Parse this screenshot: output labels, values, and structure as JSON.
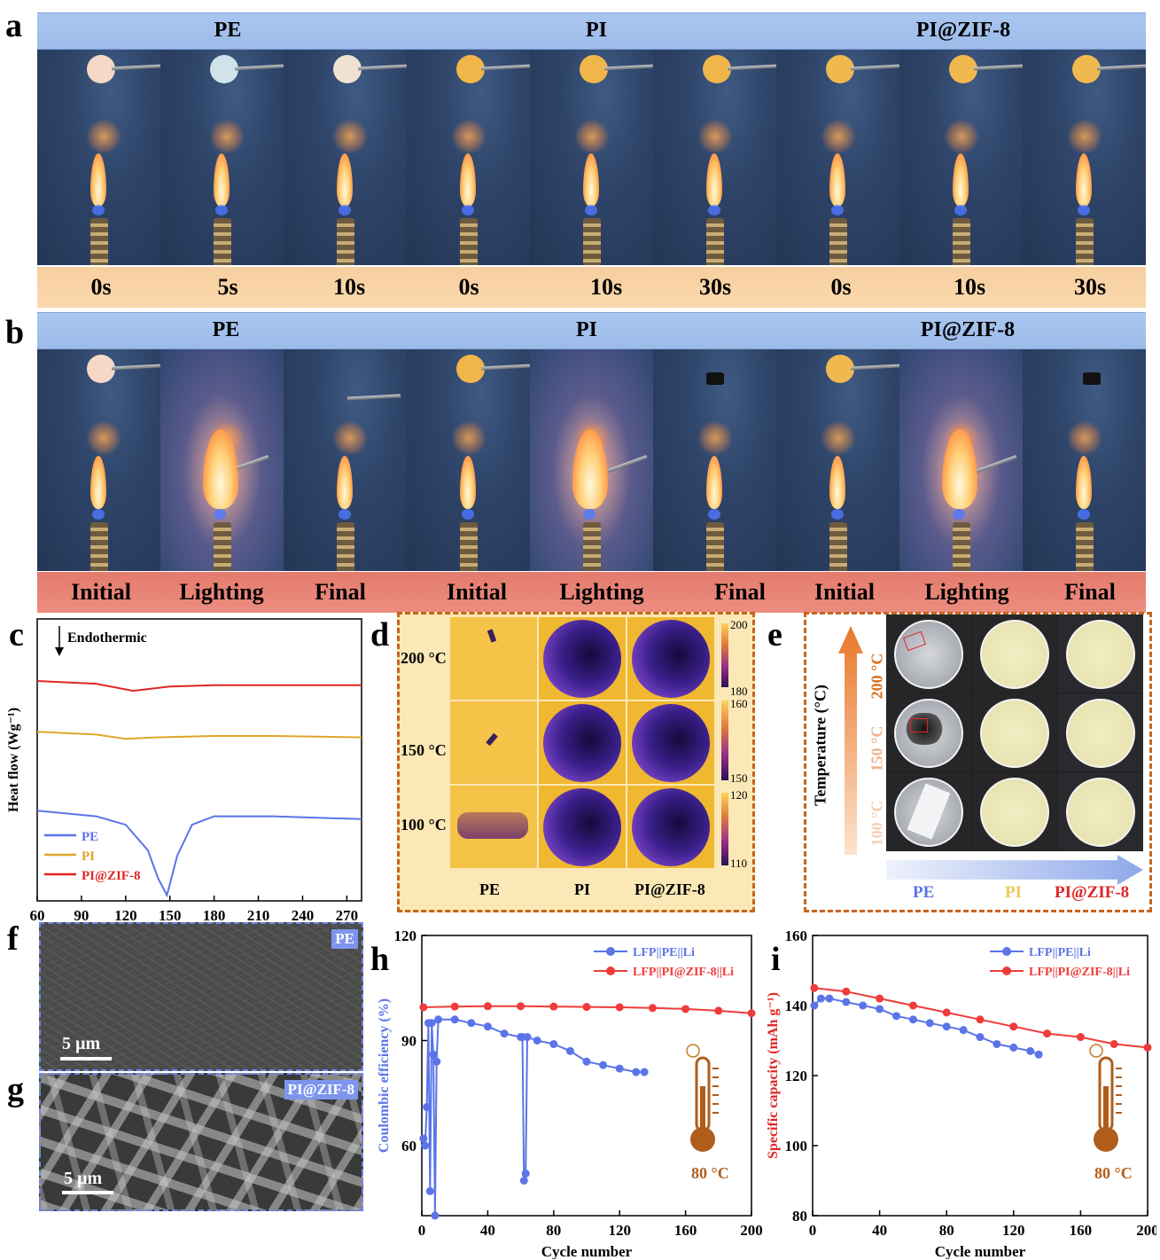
{
  "panel_letters": {
    "a": "a",
    "b": "b",
    "c": "c",
    "d": "d",
    "e": "e",
    "f": "f",
    "g": "g",
    "h": "h",
    "i": "i"
  },
  "panel_a": {
    "groups": [
      "PE",
      "PI",
      "PI@ZIF-8"
    ],
    "times": [
      "0s",
      "5s",
      "10s",
      "0s",
      "10s",
      "30s",
      "0s",
      "10s",
      "30s"
    ]
  },
  "panel_b": {
    "groups": [
      "PE",
      "PI",
      "PI@ZIF-8"
    ],
    "states": [
      "Initial",
      "Lighting",
      "Final",
      "Initial",
      "Lighting",
      "Final",
      "Initial",
      "Lighting",
      "Final"
    ]
  },
  "panel_c": {
    "annotation": "Endothermic",
    "colors": {
      "PE": "#5b74e8",
      "PI": "#e0a62a",
      "PI@ZIF-8": "#e02525"
    }
  },
  "panel_d": {
    "row_labels": [
      "200 °C",
      "150 °C",
      "100 °C"
    ],
    "col_labels": [
      "PE",
      "PI",
      "PI@ZIF-8"
    ],
    "colorbars": [
      {
        "top": "200",
        "bottom": "180"
      },
      {
        "top": "160",
        "bottom": "150"
      },
      {
        "top": "120",
        "bottom": "110"
      }
    ]
  },
  "panel_e": {
    "axis_label": "Temperature (°C)",
    "temps": [
      "200 °C",
      "150 °C",
      "100 °C"
    ],
    "materials": [
      "PE",
      "PI",
      "PI@ZIF-8"
    ],
    "material_colors": [
      "#5b74e8",
      "#f0c85a",
      "#e02525"
    ]
  },
  "panel_f": {
    "badge": "PE",
    "scale": "5 µm"
  },
  "panel_g": {
    "badge": "PI@ZIF-8",
    "scale": "5 µm"
  },
  "thermo_text": "80 °C",
  "chart_data": [
    {
      "id": "c",
      "type": "line",
      "xlabel": "Temperature (°C)",
      "ylabel": "Heat flow (Wg⁻¹)",
      "xlim": [
        60,
        280
      ],
      "xticks": [
        60,
        90,
        120,
        150,
        180,
        210,
        240,
        270
      ],
      "series": [
        {
          "name": "PE",
          "x": [
            60,
            100,
            120,
            135,
            142,
            148,
            155,
            165,
            180,
            220,
            280
          ],
          "y": [
            0.32,
            0.3,
            0.27,
            0.18,
            0.08,
            0.02,
            0.16,
            0.27,
            0.3,
            0.3,
            0.29
          ]
        },
        {
          "name": "PI",
          "x": [
            60,
            100,
            120,
            140,
            180,
            220,
            280
          ],
          "y": [
            0.6,
            0.59,
            0.575,
            0.58,
            0.585,
            0.585,
            0.58
          ]
        },
        {
          "name": "PI@ZIF-8",
          "x": [
            60,
            100,
            125,
            150,
            180,
            220,
            280
          ],
          "y": [
            0.78,
            0.77,
            0.745,
            0.76,
            0.765,
            0.765,
            0.765
          ]
        }
      ]
    },
    {
      "id": "h",
      "type": "line",
      "xlabel": "Cycle number",
      "ylabel": "Coulombic efficiency (%)",
      "xlim": [
        0,
        200
      ],
      "ylim": [
        40,
        120
      ],
      "xticks": [
        0,
        40,
        80,
        120,
        160,
        200
      ],
      "yticks": [
        60,
        90,
        120
      ],
      "series": [
        {
          "name": "LFP||PE||Li",
          "x": [
            1,
            2,
            3,
            4,
            5,
            6,
            7,
            8,
            9,
            10,
            20,
            30,
            40,
            50,
            60,
            61,
            62,
            63,
            64,
            70,
            80,
            90,
            100,
            110,
            120,
            130,
            135
          ],
          "y": [
            62,
            60,
            71,
            95,
            47,
            95,
            86,
            40,
            84,
            96,
            96,
            95,
            94,
            92,
            91,
            91,
            50,
            52,
            91,
            90,
            89,
            87,
            84,
            83,
            82,
            81,
            81
          ]
        },
        {
          "name": "LFP||PI@ZIF-8||Li",
          "x": [
            1,
            20,
            40,
            60,
            80,
            100,
            120,
            140,
            160,
            180,
            200
          ],
          "y": [
            99.5,
            99.7,
            99.8,
            99.8,
            99.7,
            99.6,
            99.5,
            99.3,
            99.0,
            98.5,
            97.8
          ]
        }
      ]
    },
    {
      "id": "i",
      "type": "line",
      "xlabel": "Cycle number",
      "ylabel": "Specific capacity (mAh g⁻¹)",
      "xlim": [
        0,
        200
      ],
      "ylim": [
        80,
        160
      ],
      "xticks": [
        0,
        40,
        80,
        120,
        160,
        200
      ],
      "yticks": [
        80,
        100,
        120,
        140,
        160
      ],
      "series": [
        {
          "name": "LFP||PE||Li",
          "x": [
            1,
            5,
            10,
            20,
            30,
            40,
            50,
            60,
            70,
            80,
            90,
            100,
            110,
            120,
            130,
            135
          ],
          "y": [
            140,
            142,
            142,
            141,
            140,
            139,
            137,
            136,
            135,
            134,
            133,
            131,
            129,
            128,
            127,
            126
          ]
        },
        {
          "name": "LFP||PI@ZIF-8||Li",
          "x": [
            1,
            20,
            40,
            60,
            80,
            100,
            120,
            140,
            160,
            180,
            200
          ],
          "y": [
            145,
            144,
            142,
            140,
            138,
            136,
            134,
            132,
            131,
            129,
            128
          ]
        }
      ]
    }
  ]
}
